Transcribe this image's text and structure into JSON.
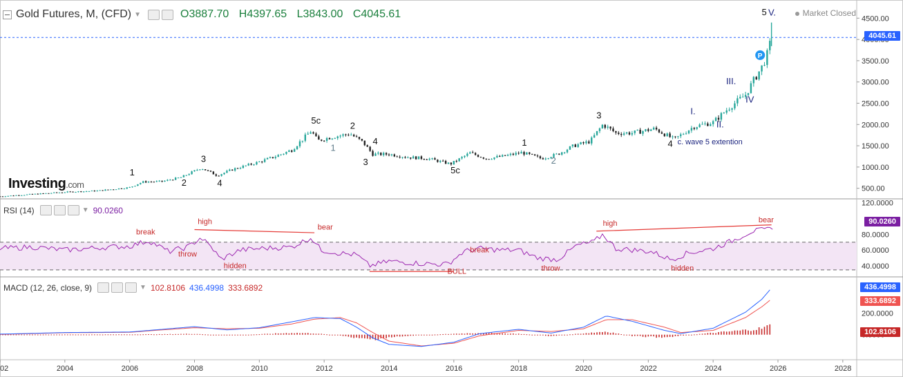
{
  "header": {
    "symbol": "Gold Futures, M, (CFD)",
    "open": "O3887.70",
    "high": "H4397.65",
    "low": "L3843.00",
    "close": "C4045.61",
    "market_status": "Market Closed"
  },
  "logo": {
    "name": "Investing",
    "suffix": ".com"
  },
  "rsi_pane": {
    "title": "RSI (14)",
    "value": "90.0260",
    "color": "#7b1fa2"
  },
  "macd_pane": {
    "title": "MACD (12, 26, close, 9)",
    "hist_value": "102.8106",
    "macd_value": "436.4998",
    "signal_value": "333.6892"
  },
  "price_tag": {
    "label": "4045.61",
    "color": "#2962ff"
  },
  "chart_data": [
    {
      "type": "candlestick",
      "title": "Gold Futures, M, (CFD)",
      "x_ticks": [
        "02",
        "2004",
        "2006",
        "2008",
        "2010",
        "2012",
        "2014",
        "2016",
        "2018",
        "2020",
        "2022",
        "2024",
        "2026",
        "2028"
      ],
      "y_ticks": [
        "500.00",
        "1000.00",
        "1500.00",
        "2000.00",
        "2500.00",
        "3000.00",
        "3500.00",
        "4000.00",
        "4500.00"
      ],
      "ylim": [
        300,
        4700
      ],
      "last_price": 4045.61,
      "colors": {
        "up": "#26a69a",
        "down": "#222222"
      },
      "series": [
        {
          "name": "close",
          "x": [
            2002.0,
            2003.0,
            2004.0,
            2005.0,
            2006.0,
            2006.4,
            2007.0,
            2007.6,
            2008.2,
            2008.7,
            2009.2,
            2010.0,
            2010.5,
            2011.0,
            2011.6,
            2011.8,
            2012.2,
            2012.8,
            2013.2,
            2013.5,
            2014.0,
            2014.6,
            2015.2,
            2015.9,
            2016.5,
            2017.0,
            2017.5,
            2018.1,
            2018.7,
            2019.2,
            2019.7,
            2020.2,
            2020.6,
            2021.0,
            2021.5,
            2022.2,
            2022.8,
            2023.4,
            2024.0,
            2024.5,
            2025.0,
            2025.3,
            2025.5,
            2025.7,
            2025.8
          ],
          "y": [
            310,
            360,
            410,
            440,
            520,
            650,
            660,
            760,
            980,
            800,
            950,
            1120,
            1250,
            1400,
            1850,
            1620,
            1700,
            1780,
            1580,
            1300,
            1300,
            1230,
            1200,
            1070,
            1330,
            1200,
            1250,
            1340,
            1200,
            1300,
            1500,
            1600,
            2000,
            1800,
            1800,
            1900,
            1650,
            1950,
            2050,
            2400,
            2700,
            3100,
            3350,
            3700,
            4045
          ]
        }
      ],
      "annotations": [
        {
          "text": "1",
          "x": 2006.0,
          "y": 800
        },
        {
          "text": "2",
          "x": 2007.6,
          "y": 560
        },
        {
          "text": "3",
          "x": 2008.2,
          "y": 1120
        },
        {
          "text": "4",
          "x": 2008.7,
          "y": 550
        },
        {
          "text": "5c",
          "x": 2011.6,
          "y": 2020
        },
        {
          "text": "1",
          "x": 2012.2,
          "y": 1380
        },
        {
          "text": "2",
          "x": 2012.8,
          "y": 1900
        },
        {
          "text": "3",
          "x": 2013.2,
          "y": 1050
        },
        {
          "text": "4",
          "x": 2013.5,
          "y": 1530
        },
        {
          "text": "5c",
          "x": 2015.9,
          "y": 850
        },
        {
          "text": "1",
          "x": 2018.1,
          "y": 1500
        },
        {
          "text": "2",
          "x": 2019.0,
          "y": 1080
        },
        {
          "text": "3",
          "x": 2020.4,
          "y": 2140
        },
        {
          "text": "4",
          "x": 2022.6,
          "y": 1480
        },
        {
          "text": "c. wave 5 extention",
          "x": 2022.9,
          "y": 1530
        },
        {
          "text": "I.",
          "x": 2023.3,
          "y": 2240
        },
        {
          "text": "II.",
          "x": 2024.1,
          "y": 1930
        },
        {
          "text": "III.",
          "x": 2024.4,
          "y": 2950
        },
        {
          "text": "IV",
          "x": 2025.0,
          "y": 2520
        },
        {
          "text": "5",
          "x": 2025.5,
          "y": 4570
        },
        {
          "text": "V.",
          "x": 2025.7,
          "y": 4560
        },
        {
          "text": "P",
          "x": 2025.45,
          "y": 3630
        }
      ]
    },
    {
      "type": "line",
      "title": "RSI (14)",
      "y_ticks": [
        "40.0000",
        "60.0000",
        "80.0000",
        "120.0000"
      ],
      "ylim": [
        27,
        124
      ],
      "bands": [
        35,
        70
      ],
      "last_value": 90.026,
      "series": [
        {
          "name": "RSI",
          "x": [
            2002.0,
            2003.0,
            2004.0,
            2005.0,
            2006.0,
            2006.6,
            2007.2,
            2007.8,
            2008.2,
            2008.6,
            2008.8,
            2009.4,
            2010.0,
            2011.0,
            2011.6,
            2011.9,
            2012.5,
            2013.0,
            2013.4,
            2014.0,
            2015.0,
            2015.8,
            2016.3,
            2016.8,
            2017.5,
            2018.0,
            2018.6,
            2019.2,
            2019.8,
            2020.3,
            2020.6,
            2021.0,
            2021.6,
            2022.1,
            2022.7,
            2023.2,
            2024.0,
            2024.6,
            2025.2,
            2025.7,
            2025.85
          ],
          "y": [
            62,
            64,
            60,
            63,
            65,
            72,
            58,
            64,
            76,
            60,
            48,
            60,
            62,
            64,
            76,
            60,
            56,
            54,
            40,
            46,
            43,
            42,
            58,
            62,
            60,
            60,
            50,
            48,
            66,
            70,
            80,
            62,
            60,
            58,
            48,
            56,
            62,
            72,
            84,
            86,
            90
          ]
        }
      ],
      "annotations": [
        {
          "text": "break",
          "x": 2006.2,
          "y": 80
        },
        {
          "text": "throw",
          "x": 2007.5,
          "y": 52
        },
        {
          "text": "high",
          "x": 2008.1,
          "y": 93
        },
        {
          "text": "hidden",
          "x": 2008.9,
          "y": 37
        },
        {
          "text": "bear",
          "x": 2011.8,
          "y": 86
        },
        {
          "text": "BULL",
          "x": 2015.8,
          "y": 30
        },
        {
          "text": "break",
          "x": 2016.5,
          "y": 57
        },
        {
          "text": "throw",
          "x": 2018.7,
          "y": 34
        },
        {
          "text": "high",
          "x": 2020.6,
          "y": 91
        },
        {
          "text": "hidden",
          "x": 2022.7,
          "y": 34
        },
        {
          "text": "bear",
          "x": 2025.4,
          "y": 95
        }
      ]
    },
    {
      "type": "line",
      "title": "MACD (12, 26, close, 9)",
      "y_ticks": [
        "0.0000",
        "200.0000"
      ],
      "ylim": [
        -150,
        520
      ],
      "series": [
        {
          "name": "MACD",
          "color": "#2962ff",
          "x": [
            2002.0,
            2004.0,
            2006.0,
            2007.0,
            2008.0,
            2009.0,
            2010.0,
            2011.0,
            2011.7,
            2012.5,
            2013.0,
            2013.5,
            2014.0,
            2015.0,
            2016.0,
            2016.8,
            2018.0,
            2019.0,
            2020.0,
            2020.7,
            2021.5,
            2022.5,
            2023.0,
            2024.0,
            2025.0,
            2025.5,
            2025.8
          ],
          "y": [
            5,
            20,
            25,
            50,
            75,
            45,
            65,
            120,
            160,
            150,
            70,
            -30,
            -90,
            -110,
            -70,
            10,
            50,
            15,
            70,
            175,
            125,
            40,
            10,
            60,
            210,
            330,
            436
          ]
        },
        {
          "name": "Signal",
          "color": "#ef5350",
          "x": [
            2002.0,
            2004.0,
            2006.0,
            2007.0,
            2008.0,
            2009.0,
            2010.0,
            2011.0,
            2011.7,
            2012.5,
            2013.0,
            2013.5,
            2014.0,
            2015.0,
            2016.0,
            2016.8,
            2018.0,
            2019.0,
            2020.0,
            2020.7,
            2021.5,
            2022.5,
            2023.0,
            2024.0,
            2025.0,
            2025.5,
            2025.8
          ],
          "y": [
            3,
            18,
            22,
            45,
            65,
            55,
            60,
            100,
            145,
            160,
            110,
            20,
            -60,
            -105,
            -80,
            -10,
            40,
            30,
            55,
            140,
            140,
            70,
            20,
            40,
            160,
            260,
            333
          ]
        },
        {
          "name": "Histogram",
          "color": "#c62828",
          "x": [
            2002.0,
            2004.0,
            2006.0,
            2007.0,
            2008.0,
            2009.0,
            2010.0,
            2011.0,
            2011.7,
            2012.5,
            2013.0,
            2013.5,
            2014.0,
            2015.0,
            2016.0,
            2016.8,
            2018.0,
            2019.0,
            2020.0,
            2020.7,
            2021.5,
            2022.5,
            2023.0,
            2024.0,
            2025.0,
            2025.5,
            2025.8
          ],
          "y": [
            2,
            2,
            3,
            5,
            10,
            -10,
            5,
            20,
            15,
            -10,
            -40,
            -50,
            -30,
            -5,
            10,
            20,
            10,
            -15,
            15,
            35,
            -15,
            -30,
            -10,
            20,
            50,
            70,
            103
          ]
        }
      ]
    }
  ]
}
